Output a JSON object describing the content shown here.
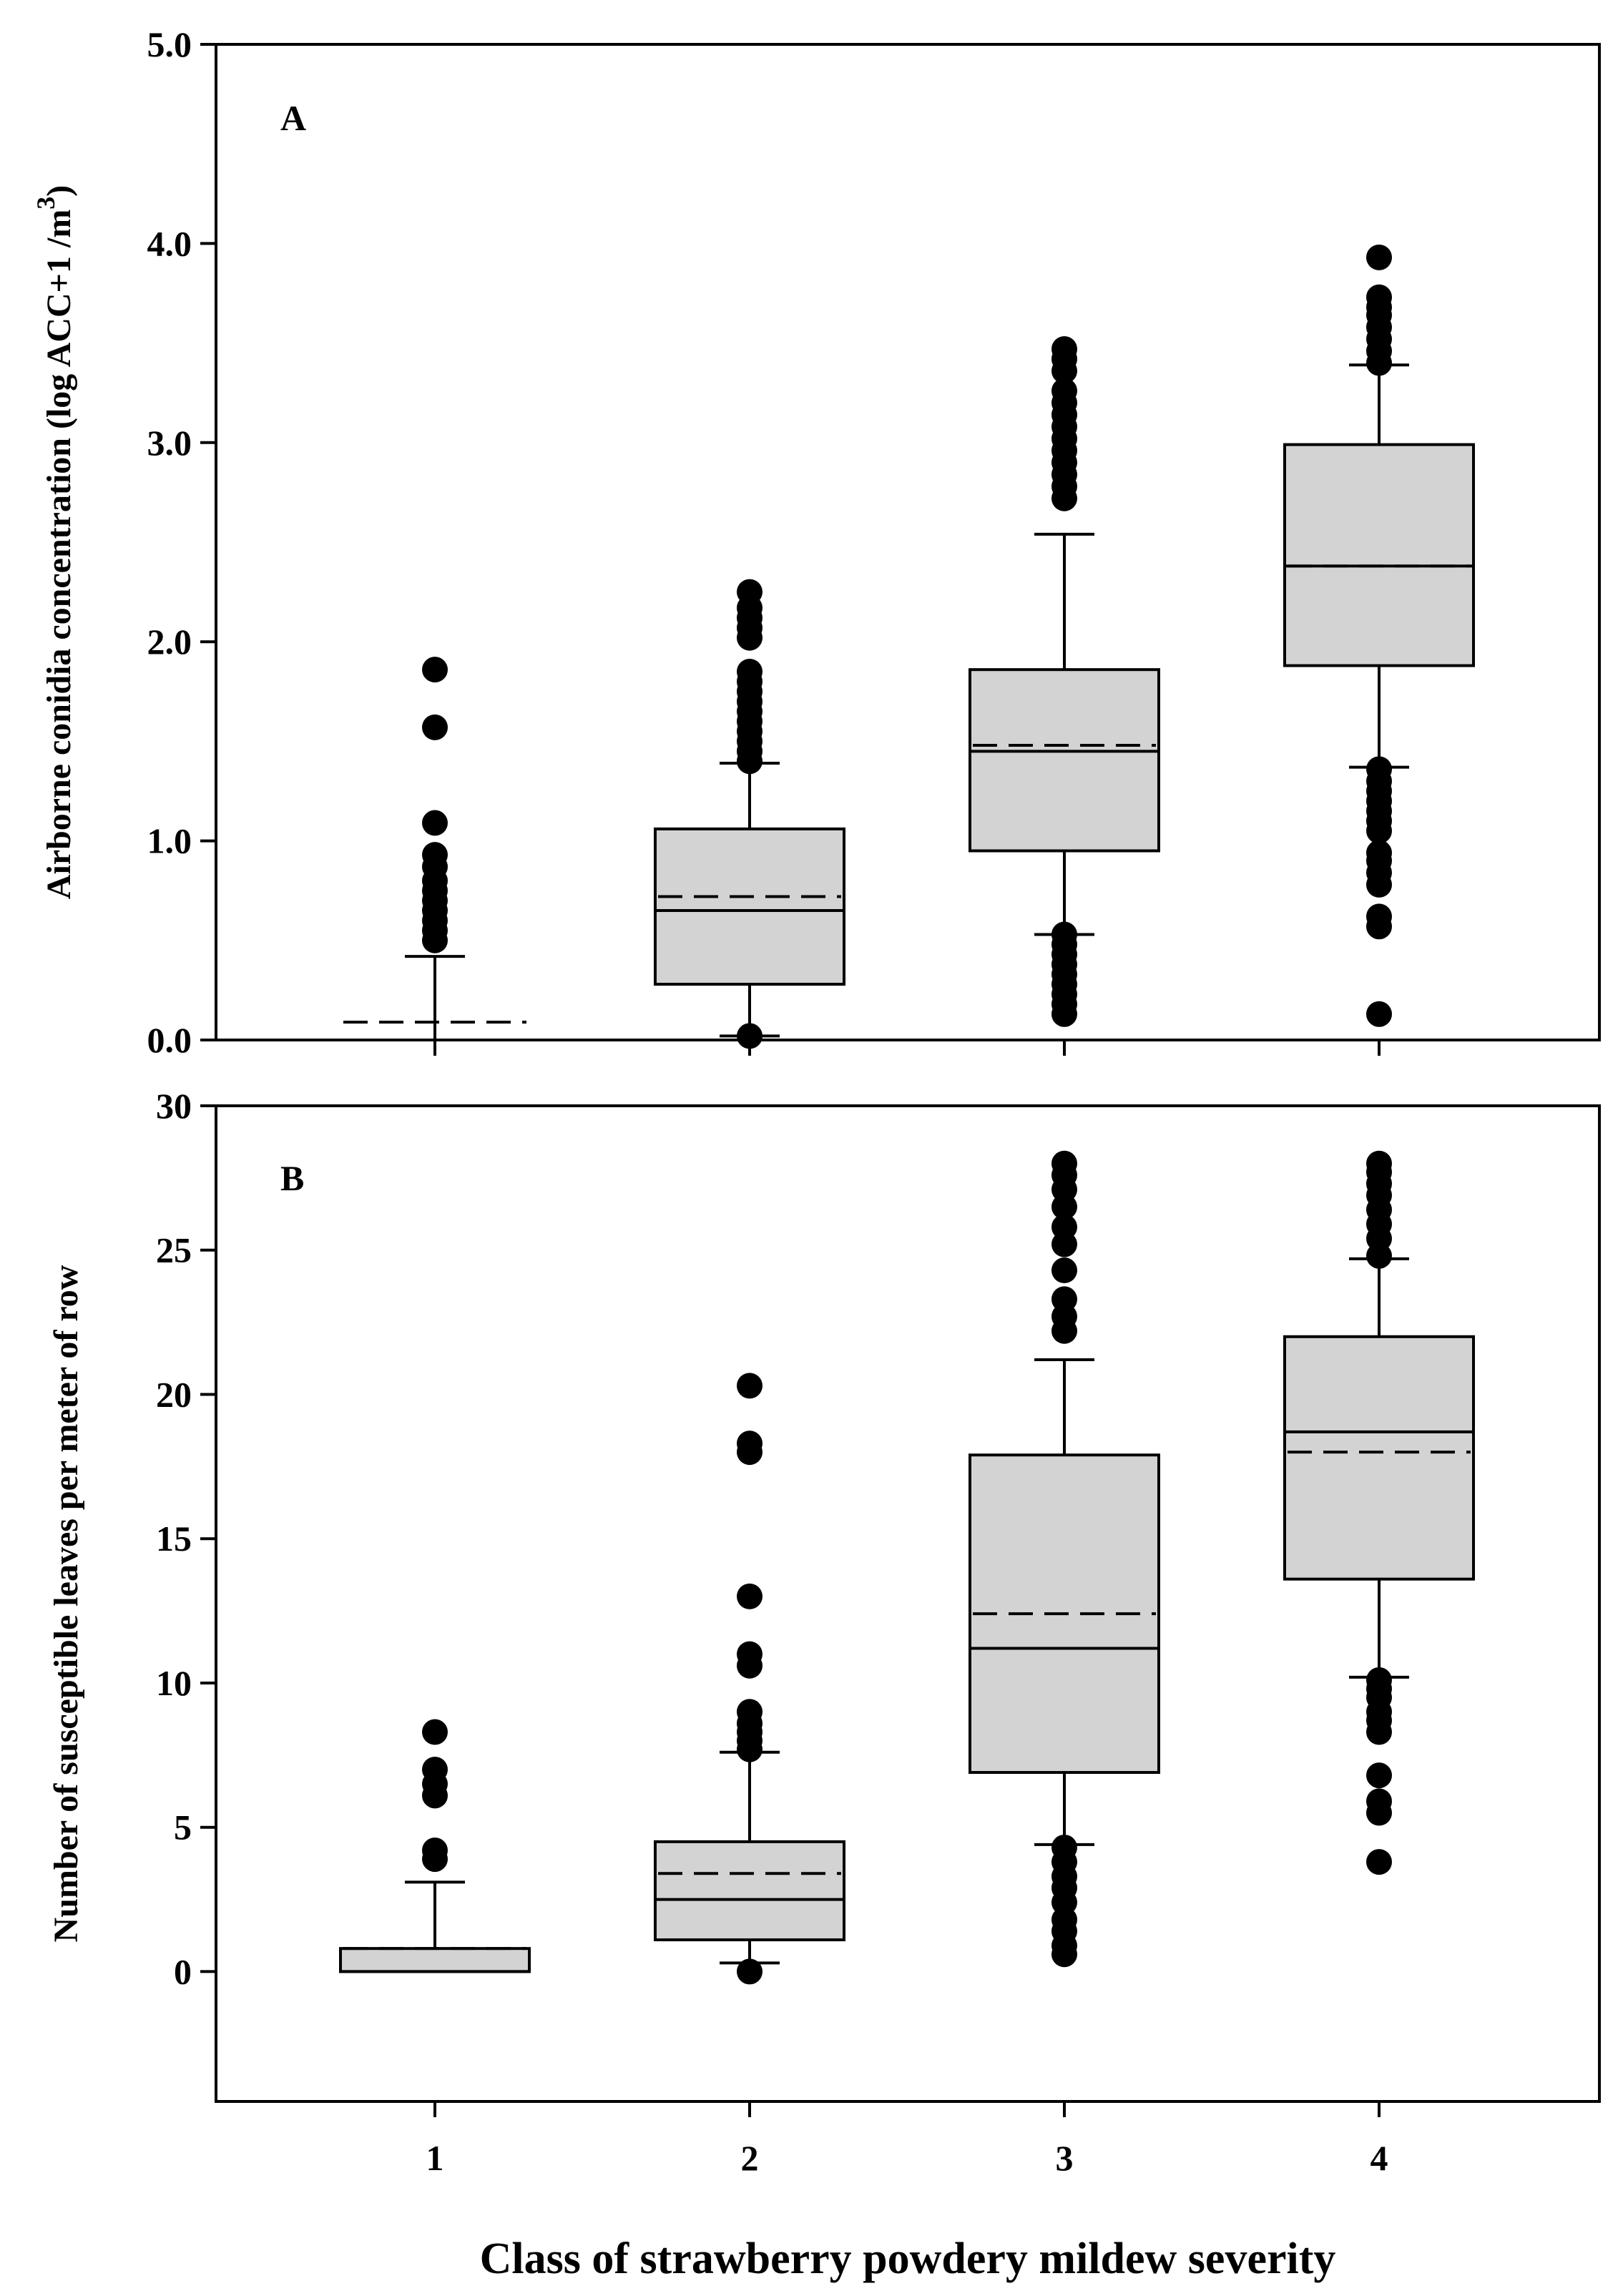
{
  "chart_data": [
    {
      "type": "box",
      "panel_label": "A",
      "ylabel": "Airborne conidia concentration (log ACC+1 /m",
      "ylabel_superscript": "3",
      "ylabel_close": ")",
      "ylim": [
        0,
        5
      ],
      "yticks": [
        0,
        1,
        2,
        3,
        4,
        5
      ],
      "ytick_labels": [
        "0.0",
        "1.0",
        "2.0",
        "3.0",
        "4.0",
        "5.0"
      ],
      "categories": [
        "1",
        "2",
        "3",
        "4"
      ],
      "series": [
        {
          "class": "1",
          "q1": null,
          "median": null,
          "q3": null,
          "mean": 0.09,
          "whisker_low": null,
          "whisker_high": 0.42,
          "outliers": [
            0.5,
            0.55,
            0.6,
            0.65,
            0.7,
            0.75,
            0.8,
            0.87,
            0.93,
            1.09,
            1.57,
            1.86
          ]
        },
        {
          "class": "2",
          "q1": 0.28,
          "median": 0.65,
          "q3": 1.06,
          "mean": 0.72,
          "whisker_low": 0.02,
          "whisker_high": 1.39,
          "outliers": [
            0.02,
            1.4,
            1.45,
            1.5,
            1.55,
            1.6,
            1.65,
            1.7,
            1.75,
            1.8,
            1.85,
            2.02,
            2.07,
            2.12,
            2.17,
            2.25
          ]
        },
        {
          "class": "3",
          "q1": 0.95,
          "median": 1.45,
          "q3": 1.86,
          "mean": 1.48,
          "whisker_low": 0.53,
          "whisker_high": 2.54,
          "outliers": [
            0.13,
            0.18,
            0.23,
            0.28,
            0.33,
            0.38,
            0.43,
            0.48,
            0.53,
            2.72,
            2.78,
            2.84,
            2.9,
            2.96,
            3.02,
            3.08,
            3.14,
            3.2,
            3.26,
            3.36,
            3.42,
            3.47
          ]
        },
        {
          "class": "4",
          "q1": 1.88,
          "median": 2.38,
          "q3": 2.99,
          "mean": 2.38,
          "whisker_low": 1.37,
          "whisker_high": 3.39,
          "outliers": [
            0.13,
            0.57,
            0.62,
            0.78,
            0.84,
            0.9,
            0.94,
            1.05,
            1.1,
            1.15,
            1.2,
            1.25,
            1.3,
            1.36,
            3.4,
            3.46,
            3.52,
            3.58,
            3.64,
            3.68,
            3.73,
            3.93
          ]
        }
      ]
    },
    {
      "type": "box",
      "panel_label": "B",
      "ylabel": "Number of susceptible leaves per meter of row",
      "ylim": [
        -4.5,
        30
      ],
      "yticks": [
        0,
        5,
        10,
        15,
        20,
        25,
        30
      ],
      "ytick_labels": [
        "0",
        "5",
        "10",
        "15",
        "20",
        "25",
        "30"
      ],
      "categories": [
        "1",
        "2",
        "3",
        "4"
      ],
      "series": [
        {
          "class": "1",
          "q1": 0.0,
          "median": 0.0,
          "q3": 0.8,
          "mean": 0.8,
          "whisker_low": 0.0,
          "whisker_high": 3.1,
          "outliers": [
            3.9,
            4.2,
            6.1,
            6.5,
            7.0,
            8.3
          ]
        },
        {
          "class": "2",
          "q1": 1.1,
          "median": 2.5,
          "q3": 4.5,
          "mean": 3.4,
          "whisker_low": 0.3,
          "whisker_high": 7.6,
          "outliers": [
            0.0,
            7.7,
            8.0,
            8.3,
            8.6,
            9.0,
            10.6,
            11.0,
            13.0,
            18.0,
            18.3,
            20.3
          ]
        },
        {
          "class": "3",
          "q1": 6.9,
          "median": 11.2,
          "q3": 17.9,
          "mean": 12.4,
          "whisker_low": 4.4,
          "whisker_high": 21.2,
          "outliers": [
            0.6,
            0.9,
            1.4,
            1.8,
            2.4,
            2.9,
            3.3,
            3.8,
            4.3,
            22.2,
            22.7,
            23.3,
            24.3,
            25.2,
            25.8,
            26.5,
            27.1,
            27.6,
            28.0
          ]
        },
        {
          "class": "4",
          "q1": 13.6,
          "median": 18.7,
          "q3": 22.0,
          "mean": 18.0,
          "whisker_low": 10.2,
          "whisker_high": 24.7,
          "outliers": [
            3.8,
            5.5,
            5.9,
            6.8,
            8.3,
            8.7,
            9.0,
            9.5,
            9.8,
            10.1,
            24.8,
            25.4,
            25.9,
            26.4,
            26.9,
            27.3,
            27.7,
            28.0
          ]
        }
      ]
    }
  ],
  "xlabel": "Class of strawberry powdery mildew severity"
}
